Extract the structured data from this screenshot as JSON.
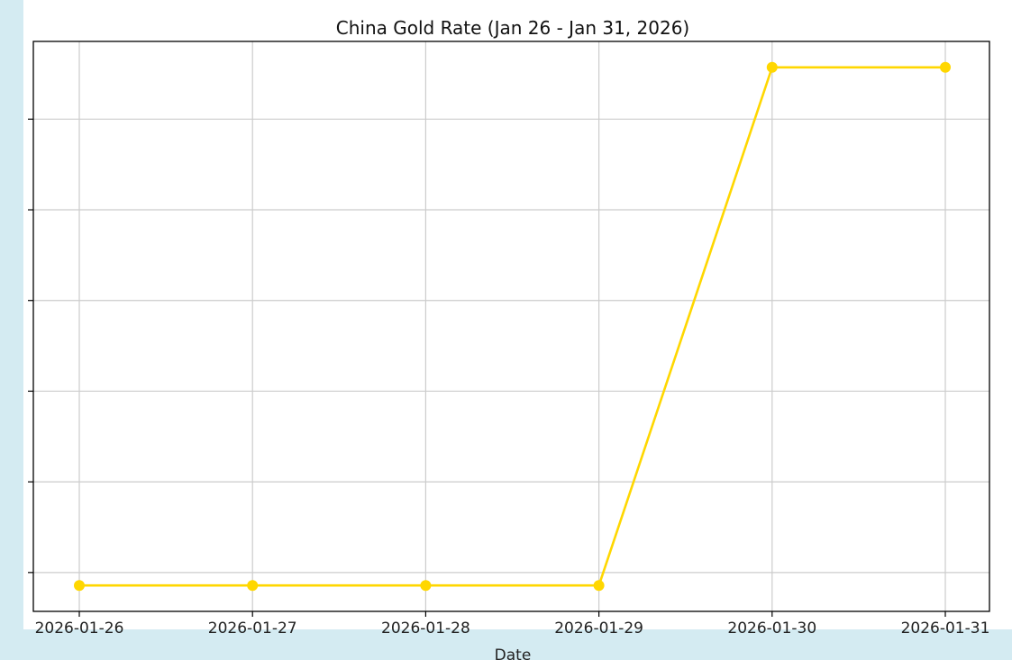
{
  "page": {
    "side_color": "#d4ebf2",
    "background": "#ffffff"
  },
  "chart_data": {
    "type": "line",
    "title": "China Gold Rate (Jan 26 - Jan 31, 2026)",
    "xlabel": "Date",
    "ylabel": "",
    "categories": [
      "2026-01-26",
      "2026-01-27",
      "2026-01-28",
      "2026-01-29",
      "2026-01-30",
      "2026-01-31"
    ],
    "series": [
      {
        "color": "#ffd700",
        "marker": "circle",
        "values": [
          0,
          0,
          0,
          0,
          1,
          1
        ]
      }
    ],
    "ylim": [
      -0.05,
      1.05
    ],
    "y_ticks": [
      0.025,
      0.2,
      0.375,
      0.55,
      0.725,
      0.9
    ],
    "y_tick_labels_visible": false,
    "grid": true,
    "grid_color": "#cccccc"
  }
}
